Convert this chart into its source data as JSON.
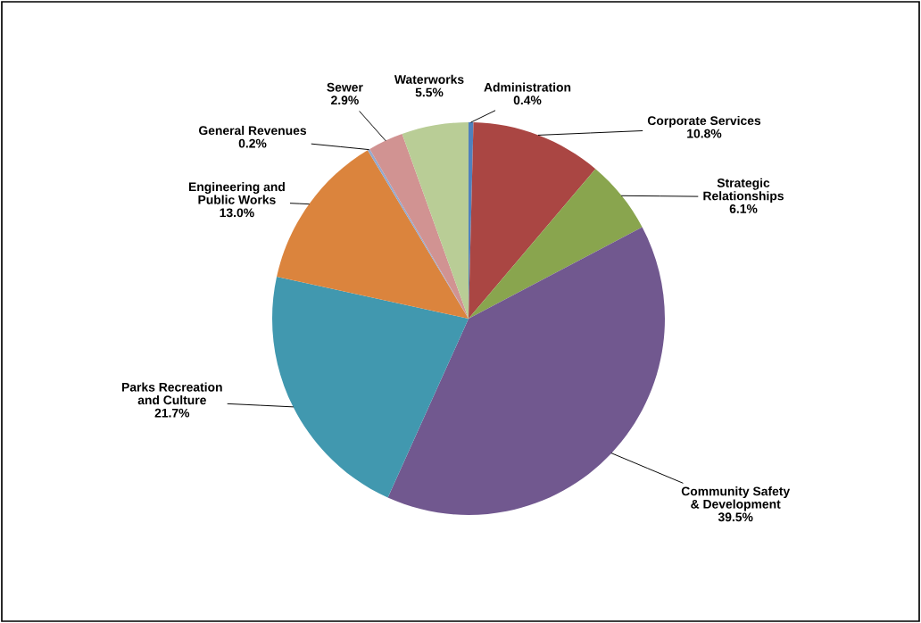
{
  "chart_data": {
    "type": "pie",
    "categories": [
      "Administration",
      "Corporate Services",
      "Strategic\nRelationships",
      "Community Safety\n& Development",
      "Parks Recreation\nand Culture",
      "Engineering and\nPublic Works",
      "General Revenues",
      "Sewer",
      "Waterworks"
    ],
    "values": [
      0.4,
      10.8,
      6.1,
      39.5,
      21.7,
      13.0,
      0.2,
      2.9,
      5.5
    ],
    "value_labels": [
      "0.4%",
      "10.8%",
      "6.1%",
      "39.5%",
      "21.7%",
      "13.0%",
      "0.2%",
      "2.9%",
      "5.5%"
    ],
    "colors": [
      "#4f81bd",
      "#aa4643",
      "#89a54e",
      "#71588f",
      "#4198af",
      "#db843d",
      "#93a9cf",
      "#d19392",
      "#b9cd96"
    ]
  }
}
